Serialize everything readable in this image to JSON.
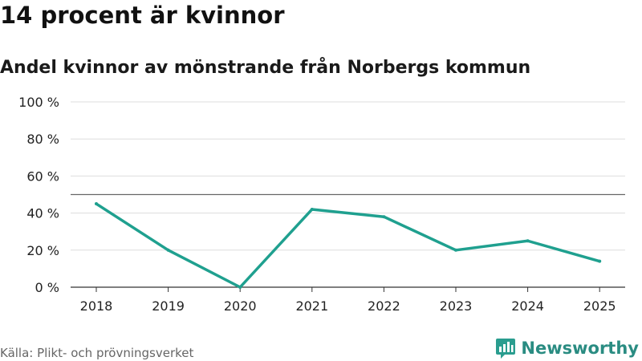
{
  "header": {
    "title": "14 procent är kvinnor",
    "subtitle": "Andel kvinnor av mönstrande från Norbergs kommun"
  },
  "footer": {
    "source": "Källa: Plikt- och prövningsverket",
    "brand": "Newsworthy",
    "brand_color": "#2a9d8f"
  },
  "chart_data": {
    "type": "line",
    "title": "14 procent är kvinnor",
    "subtitle": "Andel kvinnor av mönstrande från Norbergs kommun",
    "xlabel": "",
    "ylabel": "",
    "categories": [
      "2018",
      "2019",
      "2020",
      "2021",
      "2022",
      "2023",
      "2024",
      "2025"
    ],
    "series": [
      {
        "name": "Andel kvinnor",
        "values": [
          45,
          20,
          0,
          42,
          38,
          20,
          25,
          14
        ],
        "color": "#1fa08f"
      }
    ],
    "ylim": [
      0,
      100
    ],
    "yticks": [
      0,
      20,
      40,
      60,
      80,
      100
    ],
    "ytick_labels": [
      "0 %",
      "20 %",
      "40 %",
      "60 %",
      "80 %",
      "100 %"
    ],
    "reference_line": 50,
    "grid": true,
    "legend": "none"
  }
}
